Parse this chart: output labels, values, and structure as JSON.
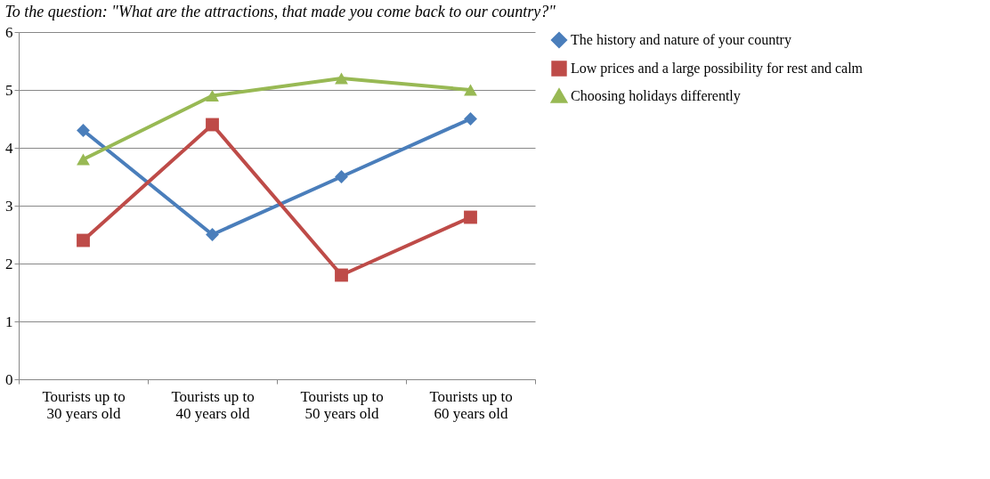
{
  "chart_data": {
    "type": "line",
    "title": "To the question: \"What are the attractions, that made you come back to our country?\"",
    "categories": [
      "Tourists up to 30 years old",
      "Tourists up to 40 years old",
      "Tourists up to 50 years old",
      "Tourists up to 60 years old"
    ],
    "series": [
      {
        "name": "The history and nature of your country",
        "color": "#4a7ebb",
        "marker": "diamond",
        "values": [
          4.3,
          2.5,
          3.5,
          4.5
        ]
      },
      {
        "name": "Low prices and a large possibility for rest and calm",
        "color": "#be4b48",
        "marker": "square",
        "values": [
          2.4,
          4.4,
          1.8,
          2.8
        ]
      },
      {
        "name": "Choosing holidays differently",
        "color": "#98b954",
        "marker": "triangle",
        "values": [
          3.8,
          4.9,
          5.2,
          5.0
        ]
      }
    ],
    "ylim": [
      0,
      6
    ],
    "yticks": [
      0,
      1,
      2,
      3,
      4,
      5,
      6
    ],
    "grid": "y",
    "legend": "right"
  }
}
